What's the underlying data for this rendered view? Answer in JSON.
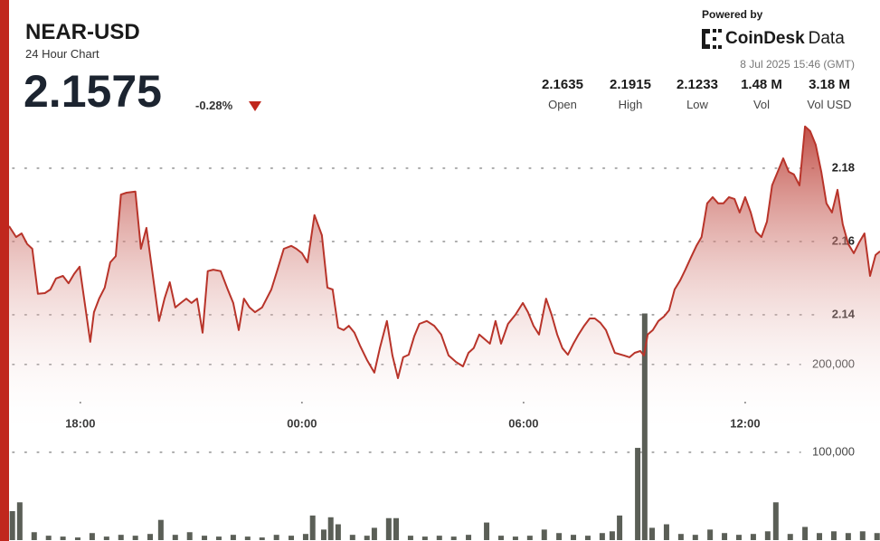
{
  "header": {
    "symbol": "NEAR-USD",
    "subtitle": "24 Hour Chart",
    "price": "2.1575",
    "change": "-0.28%"
  },
  "branding": {
    "powered_by": "Powered by",
    "brand_name": "CoinDesk",
    "brand_suffix": "Data",
    "timestamp": "8 Jul 2025 15:46 (GMT)"
  },
  "stats": [
    {
      "value": "2.1635",
      "label": "Open"
    },
    {
      "value": "2.1915",
      "label": "High"
    },
    {
      "value": "2.1233",
      "label": "Low"
    },
    {
      "value": "1.48 M",
      "label": "Vol"
    },
    {
      "value": "3.18 M",
      "label": "Vol USD"
    }
  ],
  "chart_data": {
    "type": "line",
    "xlim": [
      -1.93,
      21.65
    ],
    "xticks": [
      {
        "value": 0,
        "label": "18:00"
      },
      {
        "value": 6,
        "label": "00:00"
      },
      {
        "value": 12,
        "label": "06:00"
      },
      {
        "value": 18,
        "label": "12:00"
      }
    ],
    "ylim": [
      2.0785,
      2.1938
    ],
    "yticks": [
      2.14,
      2.16,
      2.18
    ],
    "y2lim": [
      0,
      481000
    ],
    "y2ticks": [
      {
        "value": 100000,
        "label": "100,000"
      },
      {
        "value": 200000,
        "label": "200,000"
      }
    ],
    "grid": true,
    "series": [
      {
        "type": "area",
        "color": "#b8342a",
        "x": [
          -1.93,
          -1.74,
          -1.59,
          -1.44,
          -1.3,
          -1.15,
          -0.96,
          -0.81,
          -0.66,
          -0.47,
          -0.32,
          -0.17,
          -0.02,
          0.12,
          0.27,
          0.37,
          0.51,
          0.66,
          0.81,
          0.96,
          1.1,
          1.25,
          1.49,
          1.64,
          1.79,
          1.98,
          2.13,
          2.28,
          2.42,
          2.57,
          2.72,
          2.87,
          3.01,
          3.16,
          3.31,
          3.45,
          3.6,
          3.8,
          3.99,
          4.14,
          4.29,
          4.43,
          4.58,
          4.73,
          4.92,
          5.17,
          5.31,
          5.51,
          5.71,
          5.85,
          6.0,
          6.15,
          6.34,
          6.54,
          6.69,
          6.83,
          6.98,
          7.13,
          7.27,
          7.42,
          7.57,
          7.76,
          7.96,
          8.11,
          8.3,
          8.45,
          8.6,
          8.74,
          8.89,
          9.04,
          9.18,
          9.38,
          9.58,
          9.77,
          9.97,
          10.16,
          10.36,
          10.51,
          10.65,
          10.8,
          10.95,
          11.09,
          11.24,
          11.39,
          11.58,
          11.78,
          11.98,
          12.12,
          12.27,
          12.42,
          12.61,
          12.76,
          12.91,
          13.05,
          13.2,
          13.35,
          13.49,
          13.64,
          13.79,
          13.93,
          14.08,
          14.23,
          14.47,
          14.72,
          14.87,
          15.01,
          15.16,
          15.26,
          15.36,
          15.5,
          15.65,
          15.8,
          15.94,
          16.09,
          16.24,
          16.38,
          16.53,
          16.68,
          16.82,
          16.97,
          17.12,
          17.27,
          17.41,
          17.56,
          17.71,
          17.85,
          18.0,
          18.15,
          18.29,
          18.44,
          18.59,
          18.73,
          18.88,
          19.03,
          19.18,
          19.32,
          19.47,
          19.62,
          19.76,
          19.91,
          20.06,
          20.2,
          20.35,
          20.5,
          20.64,
          20.79,
          20.94,
          21.09,
          21.23,
          21.38,
          21.53,
          21.65
        ],
        "values": [
          2.1642,
          2.1612,
          2.1622,
          2.1593,
          2.158,
          2.1457,
          2.1459,
          2.1469,
          2.1499,
          2.1506,
          2.1486,
          2.1511,
          2.1531,
          2.1432,
          2.1326,
          2.1407,
          2.1444,
          2.1474,
          2.1543,
          2.156,
          2.1728,
          2.1733,
          2.1736,
          2.158,
          2.1637,
          2.1494,
          2.1383,
          2.1444,
          2.1489,
          2.142,
          2.1432,
          2.1444,
          2.1432,
          2.1444,
          2.1351,
          2.1519,
          2.1523,
          2.1519,
          2.1469,
          2.1432,
          2.1358,
          2.1444,
          2.142,
          2.1407,
          2.142,
          2.1469,
          2.1514,
          2.158,
          2.1588,
          2.158,
          2.1568,
          2.1543,
          2.1672,
          2.1617,
          2.1474,
          2.1469,
          2.1365,
          2.1358,
          2.137,
          2.1351,
          2.1316,
          2.1277,
          2.1242,
          2.1309,
          2.1383,
          2.1289,
          2.1227,
          2.1284,
          2.1291,
          2.1341,
          2.1375,
          2.1383,
          2.137,
          2.1346,
          2.1289,
          2.1272,
          2.1259,
          2.1296,
          2.1309,
          2.1346,
          2.1333,
          2.1321,
          2.1383,
          2.1321,
          2.1375,
          2.14,
          2.1432,
          2.1407,
          2.137,
          2.1346,
          2.1444,
          2.14,
          2.1346,
          2.1309,
          2.1291,
          2.1321,
          2.1346,
          2.137,
          2.139,
          2.139,
          2.1378,
          2.1358,
          2.1296,
          2.1289,
          2.1284,
          2.1296,
          2.1301,
          2.1289,
          2.1346,
          2.1358,
          2.1383,
          2.1395,
          2.1412,
          2.1469,
          2.1494,
          2.1523,
          2.1556,
          2.1588,
          2.1612,
          2.1704,
          2.1721,
          2.1704,
          2.1704,
          2.1721,
          2.1716,
          2.1679,
          2.1721,
          2.1679,
          2.1627,
          2.1612,
          2.1654,
          2.1753,
          2.179,
          2.1827,
          2.179,
          2.1783,
          2.1753,
          2.1914,
          2.1901,
          2.1864,
          2.179,
          2.1704,
          2.1679,
          2.1741,
          2.1647,
          2.1593,
          2.1568,
          2.1598,
          2.1622,
          2.1506,
          2.1563,
          2.1573
        ]
      },
      {
        "type": "bar",
        "axis": "y2",
        "color": "#5b5f57",
        "x": [
          -1.84,
          -1.64,
          -1.25,
          -0.86,
          -0.47,
          -0.07,
          0.32,
          0.71,
          1.1,
          1.49,
          1.89,
          2.18,
          2.57,
          2.96,
          3.36,
          3.75,
          4.14,
          4.53,
          4.92,
          5.31,
          5.71,
          6.1,
          6.29,
          6.59,
          6.78,
          6.98,
          7.37,
          7.76,
          7.96,
          8.35,
          8.55,
          8.94,
          9.33,
          9.72,
          10.11,
          10.51,
          11.0,
          11.39,
          11.78,
          12.17,
          12.56,
          12.96,
          13.35,
          13.74,
          14.13,
          14.4,
          14.6,
          15.09,
          15.28,
          15.48,
          15.87,
          16.26,
          16.65,
          17.05,
          17.44,
          17.83,
          18.22,
          18.61,
          18.83,
          19.22,
          19.62,
          20.01,
          20.4,
          20.79,
          21.18,
          21.57
        ],
        "values": [
          33000,
          43000,
          9000,
          5000,
          4000,
          3000,
          8000,
          4000,
          6000,
          5000,
          7000,
          23000,
          6000,
          9000,
          5000,
          4000,
          6000,
          4000,
          3000,
          6000,
          5000,
          7000,
          28000,
          12000,
          26000,
          18000,
          6000,
          5000,
          14000,
          25000,
          25000,
          5000,
          4000,
          5000,
          4000,
          6000,
          20000,
          5000,
          4000,
          5000,
          12000,
          8000,
          6000,
          5000,
          8000,
          10000,
          28000,
          105000,
          258000,
          14000,
          18000,
          7000,
          6000,
          12000,
          8000,
          6000,
          7000,
          10000,
          43000,
          7000,
          15000,
          8000,
          10000,
          8000,
          10000,
          8000
        ]
      }
    ]
  }
}
